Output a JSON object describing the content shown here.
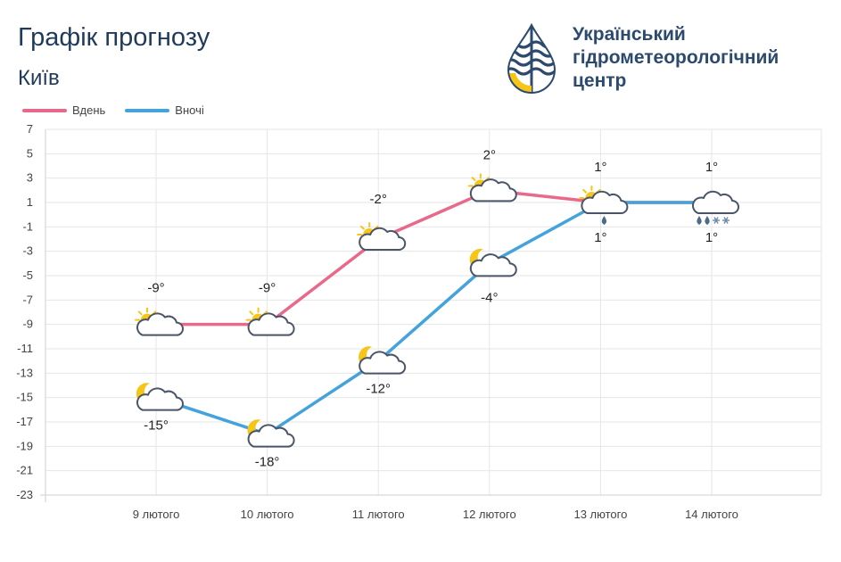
{
  "header": {
    "title": "Графік прогнозу",
    "city": "Київ",
    "org_lines": [
      "Український",
      "гідрометеорологічний",
      "центр"
    ]
  },
  "colors": {
    "day": "#e8698a",
    "night": "#44a3dd",
    "grid": "#e6e6e6",
    "text": "#222222"
  },
  "icons": {
    "logo": "drop-waves-sun-logo",
    "day": [
      "sun-cloud-icon",
      "sun-cloud-icon",
      "sun-cloud-icon",
      "sun-cloud-icon",
      "sun-cloud-rain-icon",
      "cloud-rain-snow-icon"
    ],
    "night": [
      "moon-cloud-icon",
      "moon-cloud-icon",
      "moon-cloud-icon",
      "moon-cloud-icon",
      "none",
      "none"
    ]
  },
  "chart_data": {
    "type": "line",
    "categories": [
      "9 лютого",
      "10 лютого",
      "11 лютого",
      "12 лютого",
      "13 лютого",
      "14 лютого"
    ],
    "series": [
      {
        "name": "Вдень",
        "values": [
          -9,
          -9,
          -2,
          2,
          1,
          1
        ],
        "labels": [
          "-9°",
          "-9°",
          "-2°",
          "2°",
          "1°",
          "1°"
        ]
      },
      {
        "name": "Вночі",
        "values": [
          -15,
          -18,
          -12,
          -4,
          1,
          1
        ],
        "labels": [
          "-15°",
          "-18°",
          "-12°",
          "-4°",
          "1°",
          "1°"
        ]
      }
    ],
    "yticks": [
      7,
      5,
      3,
      1,
      -1,
      -3,
      -5,
      -7,
      -9,
      -11,
      -13,
      -15,
      -17,
      -19,
      -21,
      -23
    ],
    "ylim": [
      -23,
      7
    ],
    "grid": true,
    "legend": "top-left"
  }
}
